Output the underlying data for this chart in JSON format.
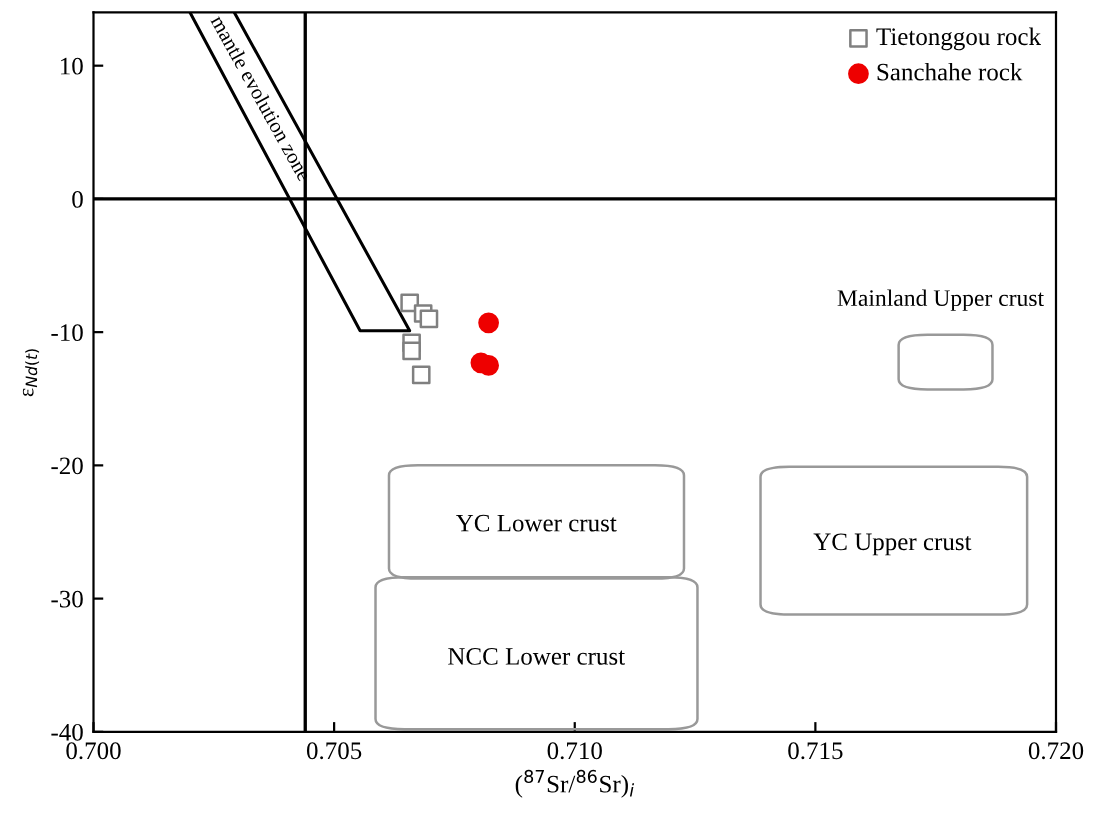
{
  "chart_data": {
    "type": "scatter",
    "xlabel": "($^{87}$Sr/$^{86}$Sr)$_{i}$",
    "ylabel": "ε$_{Nd(t)}$",
    "xlim": [
      0.7,
      0.72
    ],
    "ylim": [
      -40,
      14
    ],
    "xticks": [
      {
        "value": 0.7,
        "label": "0.700"
      },
      {
        "value": 0.705,
        "label": "0.705"
      },
      {
        "value": 0.71,
        "label": "0.710"
      },
      {
        "value": 0.715,
        "label": "0.715"
      },
      {
        "value": 0.72,
        "label": "0.720"
      }
    ],
    "yticks": [
      -40,
      -30,
      -20,
      -10,
      0,
      10
    ],
    "series": [
      {
        "name": "Tietonggou rock",
        "color": "#808080",
        "marker": "square",
        "x": [
          0.70657,
          0.70685,
          0.70697,
          0.70661,
          0.70661,
          0.70681
        ],
        "values": [
          -7.8,
          -8.6,
          -9.0,
          -10.8,
          -11.4,
          -13.2
        ]
      },
      {
        "name": "Sanchahe rock",
        "color": "#ee0000",
        "marker": "circle",
        "x": [
          0.70821,
          0.70805,
          0.70821
        ],
        "values": [
          -9.3,
          -12.3,
          -12.5
        ]
      }
    ],
    "ref_lines": [
      {
        "axis": "y",
        "value": 0,
        "color": "#000000"
      },
      {
        "axis": "x",
        "value": 0.7044,
        "color": "#000000"
      }
    ],
    "annotations": [
      "mantle evolution zone",
      "Mainland Upper crust",
      "YC Lower crust",
      "YC Upper crust",
      "NCC Lower crust"
    ],
    "legend": "top right",
    "grid": false
  }
}
